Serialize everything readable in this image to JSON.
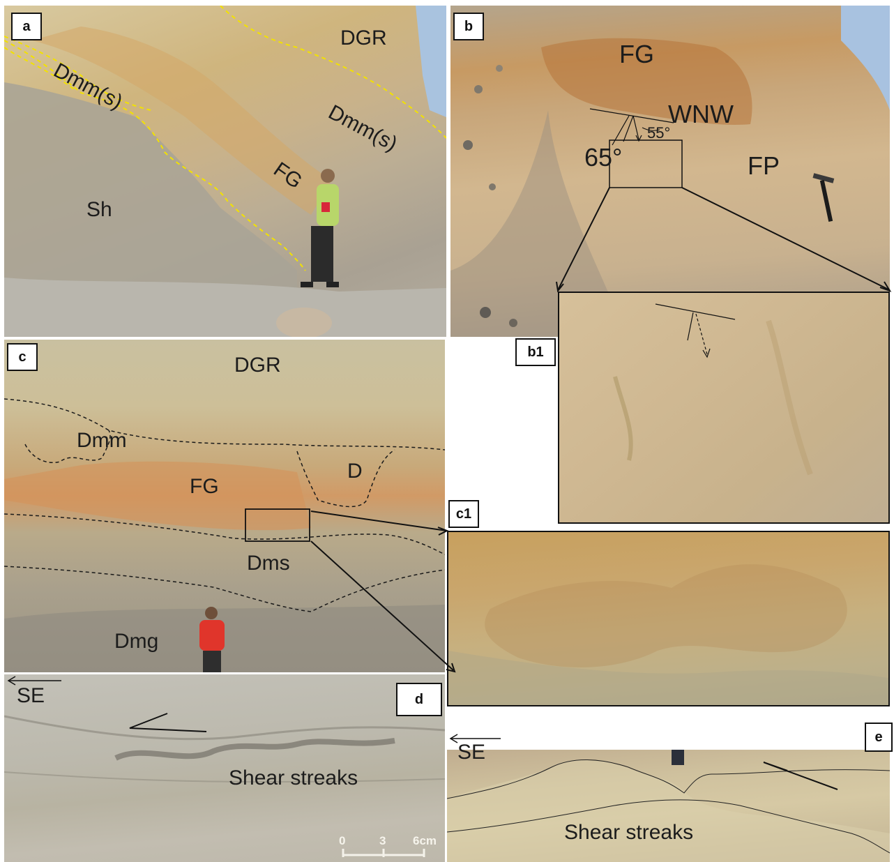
{
  "panels": {
    "a": {
      "tag": "a",
      "labels": {
        "dgr": "DGR",
        "dmm_s_left": "Dmm(s)",
        "dmm_s_right": "Dmm(s)",
        "fg": "FG",
        "sh": "Sh"
      }
    },
    "b": {
      "tag": "b",
      "labels": {
        "fg": "FG",
        "wnw": "WNW",
        "angle_55": "55°",
        "angle_65": "65°",
        "fp": "FP"
      }
    },
    "b1": {
      "tag": "b1"
    },
    "c": {
      "tag": "c",
      "labels": {
        "dgr": "DGR",
        "dmm": "Dmm",
        "fg": "FG",
        "d": "D",
        "dms": "Dms",
        "dmg": "Dmg"
      }
    },
    "c1": {
      "tag": "c1"
    },
    "d": {
      "tag": "d",
      "labels": {
        "se": "SE",
        "shear": "Shear streaks"
      },
      "scale": {
        "t0": "0",
        "t3": "3",
        "t6": "6cm"
      }
    },
    "e": {
      "tag": "e",
      "labels": {
        "se": "SE",
        "shear": "Shear streaks"
      }
    }
  },
  "colors": {
    "contact_a": "#f2e200",
    "contact_c": "#1a1a1a",
    "label_text": "#1c1c1c",
    "outline": "#111111"
  }
}
